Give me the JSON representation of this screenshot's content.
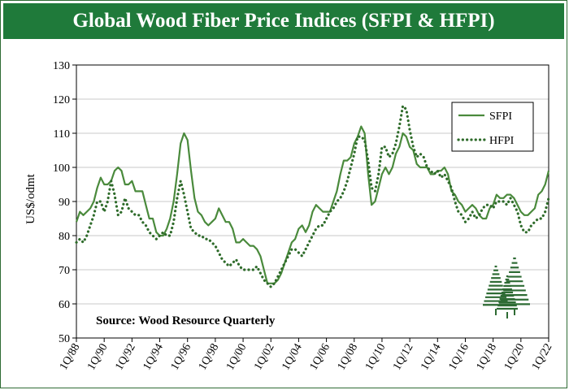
{
  "chart_data": {
    "type": "line",
    "title": "Global Wood Fiber Price Indices (SFPI & HFPI)",
    "ylabel": "US$/odmt",
    "xlabel": "",
    "source": "Source: Wood Resource Quarterly",
    "ylim": [
      50,
      130
    ],
    "yticks": [
      50,
      60,
      70,
      80,
      90,
      100,
      110,
      120,
      130
    ],
    "xlim": [
      1988.0,
      2022.0
    ],
    "xticks": [
      "1Q/88",
      "1Q/90",
      "1Q/92",
      "1Q/94",
      "1Q/96",
      "1Q/98",
      "1Q/00",
      "1Q/02",
      "1Q/04",
      "1Q/06",
      "1Q/08",
      "1Q/10",
      "1Q/12",
      "1Q/14",
      "1Q/16",
      "1Q/18",
      "1Q/20",
      "1Q/22"
    ],
    "grid": true,
    "legend": "top-right",
    "series": [
      {
        "name": "SFPI",
        "color": "#4a8a3c",
        "style": "solid",
        "points": [
          [
            1988.0,
            84
          ],
          [
            1988.25,
            87
          ],
          [
            1988.5,
            86
          ],
          [
            1988.75,
            87
          ],
          [
            1989.0,
            88
          ],
          [
            1989.25,
            90
          ],
          [
            1989.5,
            94
          ],
          [
            1989.75,
            97
          ],
          [
            1990.0,
            95
          ],
          [
            1990.25,
            95
          ],
          [
            1990.5,
            96
          ],
          [
            1990.75,
            99
          ],
          [
            1991.0,
            100
          ],
          [
            1991.25,
            99
          ],
          [
            1991.5,
            95
          ],
          [
            1991.75,
            95
          ],
          [
            1992.0,
            96
          ],
          [
            1992.25,
            93
          ],
          [
            1992.5,
            93
          ],
          [
            1992.75,
            93
          ],
          [
            1993.0,
            89
          ],
          [
            1993.25,
            85
          ],
          [
            1993.5,
            85
          ],
          [
            1993.75,
            81
          ],
          [
            1994.0,
            80
          ],
          [
            1994.25,
            80
          ],
          [
            1994.5,
            82
          ],
          [
            1994.75,
            85
          ],
          [
            1995.0,
            90
          ],
          [
            1995.25,
            98
          ],
          [
            1995.5,
            107
          ],
          [
            1995.75,
            110
          ],
          [
            1996.0,
            108
          ],
          [
            1996.25,
            99
          ],
          [
            1996.5,
            91
          ],
          [
            1996.75,
            87
          ],
          [
            1997.0,
            86
          ],
          [
            1997.25,
            84
          ],
          [
            1997.5,
            83
          ],
          [
            1997.75,
            84
          ],
          [
            1998.0,
            85
          ],
          [
            1998.25,
            88
          ],
          [
            1998.5,
            86
          ],
          [
            1998.75,
            84
          ],
          [
            1999.0,
            84
          ],
          [
            1999.25,
            82
          ],
          [
            1999.5,
            78
          ],
          [
            1999.75,
            78
          ],
          [
            2000.0,
            79
          ],
          [
            2000.25,
            78
          ],
          [
            2000.5,
            77
          ],
          [
            2000.75,
            77
          ],
          [
            2001.0,
            76
          ],
          [
            2001.25,
            74
          ],
          [
            2001.5,
            70
          ],
          [
            2001.75,
            66
          ],
          [
            2002.0,
            66
          ],
          [
            2002.25,
            66
          ],
          [
            2002.5,
            67
          ],
          [
            2002.75,
            69
          ],
          [
            2003.0,
            72
          ],
          [
            2003.25,
            75
          ],
          [
            2003.5,
            78
          ],
          [
            2003.75,
            79
          ],
          [
            2004.0,
            82
          ],
          [
            2004.25,
            83
          ],
          [
            2004.5,
            81
          ],
          [
            2004.75,
            83
          ],
          [
            2005.0,
            87
          ],
          [
            2005.25,
            89
          ],
          [
            2005.5,
            88
          ],
          [
            2005.75,
            87
          ],
          [
            2006.0,
            87
          ],
          [
            2006.25,
            87
          ],
          [
            2006.5,
            90
          ],
          [
            2006.75,
            93
          ],
          [
            2007.0,
            98
          ],
          [
            2007.25,
            102
          ],
          [
            2007.5,
            102
          ],
          [
            2007.75,
            103
          ],
          [
            2008.0,
            107
          ],
          [
            2008.25,
            109
          ],
          [
            2008.5,
            112
          ],
          [
            2008.75,
            110
          ],
          [
            2009.0,
            98
          ],
          [
            2009.25,
            89
          ],
          [
            2009.5,
            90
          ],
          [
            2009.75,
            94
          ],
          [
            2010.0,
            98
          ],
          [
            2010.25,
            100
          ],
          [
            2010.5,
            98
          ],
          [
            2010.75,
            100
          ],
          [
            2011.0,
            104
          ],
          [
            2011.25,
            106
          ],
          [
            2011.5,
            110
          ],
          [
            2011.75,
            109
          ],
          [
            2012.0,
            106
          ],
          [
            2012.25,
            105
          ],
          [
            2012.5,
            101
          ],
          [
            2012.75,
            100
          ],
          [
            2013.0,
            100
          ],
          [
            2013.25,
            100
          ],
          [
            2013.5,
            98
          ],
          [
            2013.75,
            98
          ],
          [
            2014.0,
            99
          ],
          [
            2014.25,
            99
          ],
          [
            2014.5,
            100
          ],
          [
            2014.75,
            98
          ],
          [
            2015.0,
            93
          ],
          [
            2015.25,
            92
          ],
          [
            2015.5,
            90
          ],
          [
            2015.75,
            89
          ],
          [
            2016.0,
            87
          ],
          [
            2016.25,
            88
          ],
          [
            2016.5,
            89
          ],
          [
            2016.75,
            88
          ],
          [
            2017.0,
            86
          ],
          [
            2017.25,
            85
          ],
          [
            2017.5,
            85
          ],
          [
            2017.75,
            88
          ],
          [
            2018.0,
            89
          ],
          [
            2018.25,
            92
          ],
          [
            2018.5,
            91
          ],
          [
            2018.75,
            91
          ],
          [
            2019.0,
            92
          ],
          [
            2019.25,
            92
          ],
          [
            2019.5,
            91
          ],
          [
            2019.75,
            89
          ],
          [
            2020.0,
            87
          ],
          [
            2020.25,
            86
          ],
          [
            2020.5,
            86
          ],
          [
            2020.75,
            87
          ],
          [
            2021.0,
            88
          ],
          [
            2021.25,
            92
          ],
          [
            2021.5,
            93
          ],
          [
            2021.75,
            95
          ],
          [
            2022.0,
            99
          ]
        ]
      },
      {
        "name": "HFPI",
        "color": "#2e6b2a",
        "style": "dotted",
        "points": [
          [
            1988.0,
            78
          ],
          [
            1988.25,
            79
          ],
          [
            1988.5,
            78
          ],
          [
            1988.75,
            80
          ],
          [
            1989.0,
            83
          ],
          [
            1989.25,
            86
          ],
          [
            1989.5,
            90
          ],
          [
            1989.75,
            90
          ],
          [
            1990.0,
            87
          ],
          [
            1990.25,
            90
          ],
          [
            1990.5,
            96
          ],
          [
            1990.75,
            92
          ],
          [
            1991.0,
            86
          ],
          [
            1991.25,
            87
          ],
          [
            1991.5,
            91
          ],
          [
            1991.75,
            88
          ],
          [
            1992.0,
            87
          ],
          [
            1992.25,
            86
          ],
          [
            1992.5,
            86
          ],
          [
            1992.75,
            84
          ],
          [
            1993.0,
            83
          ],
          [
            1993.25,
            81
          ],
          [
            1993.5,
            80
          ],
          [
            1993.75,
            79
          ],
          [
            1994.0,
            80
          ],
          [
            1994.25,
            81
          ],
          [
            1994.5,
            80
          ],
          [
            1994.75,
            80
          ],
          [
            1995.0,
            84
          ],
          [
            1995.25,
            91
          ],
          [
            1995.5,
            96
          ],
          [
            1995.75,
            92
          ],
          [
            1996.0,
            87
          ],
          [
            1996.25,
            82
          ],
          [
            1996.5,
            81
          ],
          [
            1996.75,
            80
          ],
          [
            1997.0,
            80
          ],
          [
            1997.25,
            79
          ],
          [
            1997.5,
            79
          ],
          [
            1997.75,
            78
          ],
          [
            1998.0,
            77
          ],
          [
            1998.25,
            75
          ],
          [
            1998.5,
            73
          ],
          [
            1998.75,
            72
          ],
          [
            1999.0,
            71
          ],
          [
            1999.25,
            72
          ],
          [
            1999.5,
            73
          ],
          [
            1999.75,
            71
          ],
          [
            2000.0,
            70
          ],
          [
            2000.25,
            70
          ],
          [
            2000.5,
            70
          ],
          [
            2000.75,
            70
          ],
          [
            2001.0,
            71
          ],
          [
            2001.25,
            69
          ],
          [
            2001.5,
            67
          ],
          [
            2001.75,
            66
          ],
          [
            2002.0,
            65
          ],
          [
            2002.25,
            66
          ],
          [
            2002.5,
            68
          ],
          [
            2002.75,
            70
          ],
          [
            2003.0,
            72
          ],
          [
            2003.25,
            74
          ],
          [
            2003.5,
            76
          ],
          [
            2003.75,
            76
          ],
          [
            2004.0,
            75
          ],
          [
            2004.25,
            74
          ],
          [
            2004.5,
            76
          ],
          [
            2004.75,
            78
          ],
          [
            2005.0,
            80
          ],
          [
            2005.25,
            82
          ],
          [
            2005.5,
            83
          ],
          [
            2005.75,
            83
          ],
          [
            2006.0,
            85
          ],
          [
            2006.25,
            87
          ],
          [
            2006.5,
            88
          ],
          [
            2006.75,
            90
          ],
          [
            2007.0,
            91
          ],
          [
            2007.25,
            93
          ],
          [
            2007.5,
            96
          ],
          [
            2007.75,
            100
          ],
          [
            2008.0,
            104
          ],
          [
            2008.25,
            109
          ],
          [
            2008.5,
            109
          ],
          [
            2008.75,
            108
          ],
          [
            2009.0,
            102
          ],
          [
            2009.25,
            94
          ],
          [
            2009.5,
            93
          ],
          [
            2009.75,
            98
          ],
          [
            2010.0,
            106
          ],
          [
            2010.25,
            106
          ],
          [
            2010.5,
            103
          ],
          [
            2010.75,
            104
          ],
          [
            2011.0,
            107
          ],
          [
            2011.25,
            112
          ],
          [
            2011.5,
            118
          ],
          [
            2011.75,
            117
          ],
          [
            2012.0,
            111
          ],
          [
            2012.25,
            106
          ],
          [
            2012.5,
            103
          ],
          [
            2012.75,
            104
          ],
          [
            2013.0,
            103
          ],
          [
            2013.25,
            100
          ],
          [
            2013.5,
            99
          ],
          [
            2013.75,
            98
          ],
          [
            2014.0,
            99
          ],
          [
            2014.25,
            97
          ],
          [
            2014.5,
            98
          ],
          [
            2014.75,
            96
          ],
          [
            2015.0,
            94
          ],
          [
            2015.25,
            90
          ],
          [
            2015.5,
            87
          ],
          [
            2015.75,
            86
          ],
          [
            2016.0,
            84
          ],
          [
            2016.25,
            85
          ],
          [
            2016.5,
            87
          ],
          [
            2016.75,
            85
          ],
          [
            2017.0,
            86
          ],
          [
            2017.25,
            88
          ],
          [
            2017.5,
            89
          ],
          [
            2017.75,
            89
          ],
          [
            2018.0,
            88
          ],
          [
            2018.25,
            90
          ],
          [
            2018.5,
            90
          ],
          [
            2018.75,
            90
          ],
          [
            2019.0,
            89
          ],
          [
            2019.25,
            91
          ],
          [
            2019.5,
            89
          ],
          [
            2019.75,
            87
          ],
          [
            2020.0,
            83
          ],
          [
            2020.25,
            81
          ],
          [
            2020.5,
            81
          ],
          [
            2020.75,
            83
          ],
          [
            2021.0,
            84
          ],
          [
            2021.25,
            85
          ],
          [
            2021.5,
            85
          ],
          [
            2021.75,
            87
          ],
          [
            2022.0,
            91
          ]
        ]
      }
    ]
  },
  "logo": {
    "name": "tree-logo-icon",
    "color": "#2e6b34"
  }
}
